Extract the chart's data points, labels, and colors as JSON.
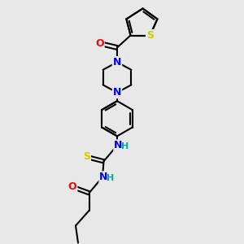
{
  "bg_color": "#e8e8e8",
  "atom_colors": {
    "N": "#0000ff",
    "O": "#ff0000",
    "S_thio": "#cccc00",
    "S_thiophene": "#cccc00",
    "NH_color": "#00aaaa"
  },
  "bond_color": "#000000",
  "line_width": 1.5,
  "font_size": 9,
  "fig_width": 3.0,
  "fig_height": 3.0,
  "dpi": 100,
  "xlim": [
    0,
    10
  ],
  "ylim": [
    0,
    10
  ],
  "bg_hex": "#e8e8e8"
}
